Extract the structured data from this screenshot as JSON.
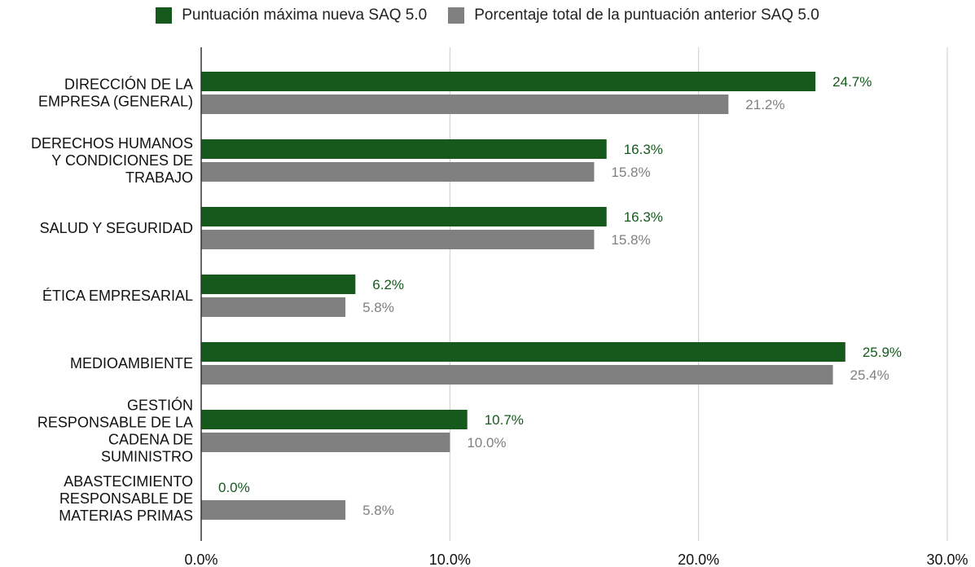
{
  "chart_data": {
    "type": "bar",
    "orientation": "horizontal",
    "categories": [
      [
        "DIRECCIÓN DE LA",
        "EMPRESA (GENERAL)"
      ],
      [
        "DERECHOS HUMANOS",
        "Y CONDICIONES DE",
        "TRABAJO"
      ],
      [
        "SALUD Y SEGURIDAD"
      ],
      [
        "ÉTICA EMPRESARIAL"
      ],
      [
        "MEDIOAMBIENTE"
      ],
      [
        "GESTIÓN",
        "RESPONSABLE DE LA",
        "CADENA DE",
        "SUMINISTRO"
      ],
      [
        "ABASTECIMIENTO",
        "RESPONSABLE DE",
        "MATERIAS PRIMAS"
      ]
    ],
    "series": [
      {
        "name": "Puntuación máxima nueva SAQ 5.0",
        "color": "#155a1c",
        "values": [
          24.7,
          16.3,
          16.3,
          6.2,
          25.9,
          10.7,
          0.0
        ],
        "labels": [
          "24.7%",
          "16.3%",
          "16.3%",
          "6.2%",
          "25.9%",
          "10.7%",
          "0.0%"
        ]
      },
      {
        "name": "Porcentaje total de la puntuación anterior SAQ 5.0",
        "color": "#808080",
        "values": [
          21.2,
          15.8,
          15.8,
          5.8,
          25.4,
          10.0,
          5.8
        ],
        "labels": [
          "21.2%",
          "15.8%",
          "15.8%",
          "5.8%",
          "25.4%",
          "10.0%",
          "5.8%"
        ]
      }
    ],
    "xlim": [
      0,
      30
    ],
    "xticks": [
      0,
      10,
      20,
      30
    ],
    "xtick_labels": [
      "0.0%",
      "10.0%",
      "20.0%",
      "30.0%"
    ],
    "grid": true,
    "legend_position": "top-center"
  }
}
